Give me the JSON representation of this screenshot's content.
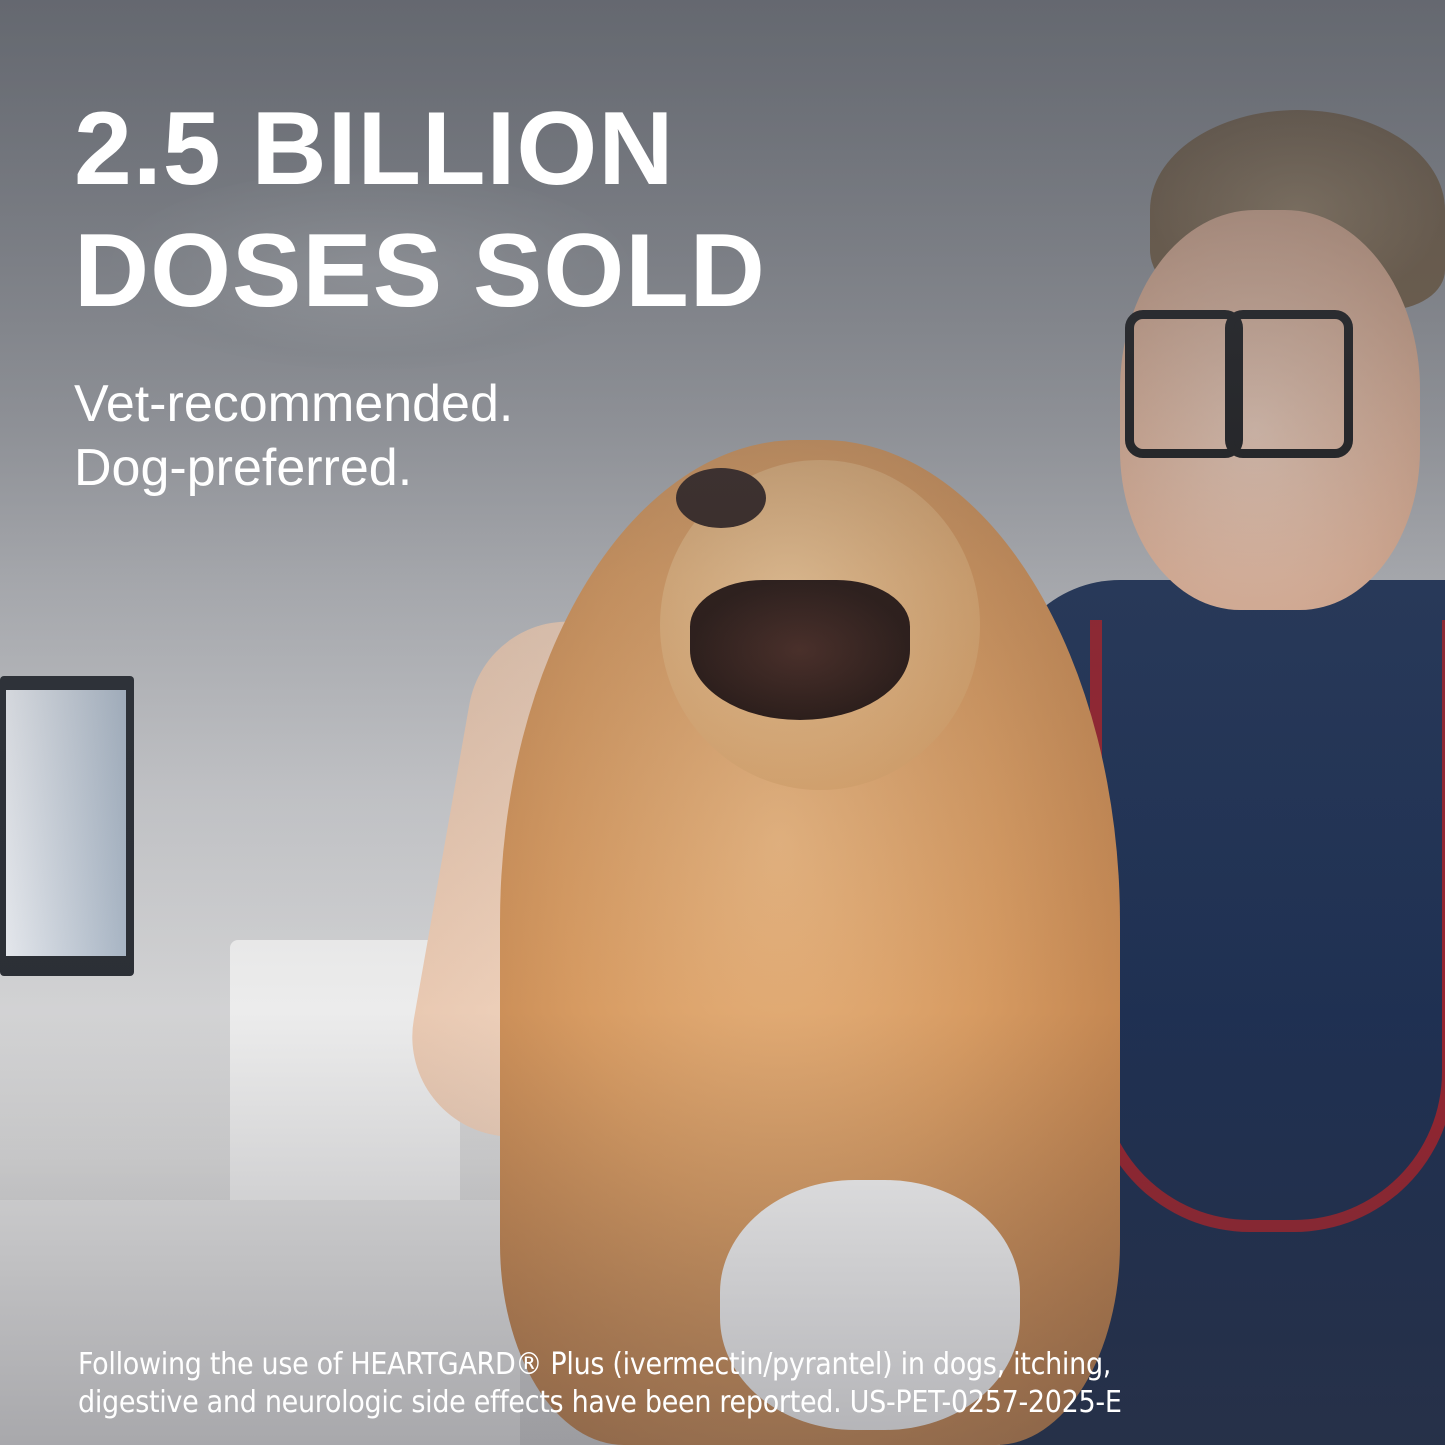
{
  "headline": {
    "line1": "2.5 BILLION",
    "line2": "DOSES SOLD"
  },
  "subheadline": {
    "line1": "Vet-recommended.",
    "line2": "Dog-preferred."
  },
  "disclaimer": {
    "line1": "Following the use of HEARTGARD® Plus (ivermectin/pyrantel) in dogs, itching,",
    "line2": "digestive and neurologic side effects have been reported. US-PET-0257-2025-E"
  },
  "colors": {
    "text": "#ffffff",
    "scrubs": "#1f3050",
    "stethoscope": "#a3232c",
    "dog_fur": "#d79b62"
  }
}
